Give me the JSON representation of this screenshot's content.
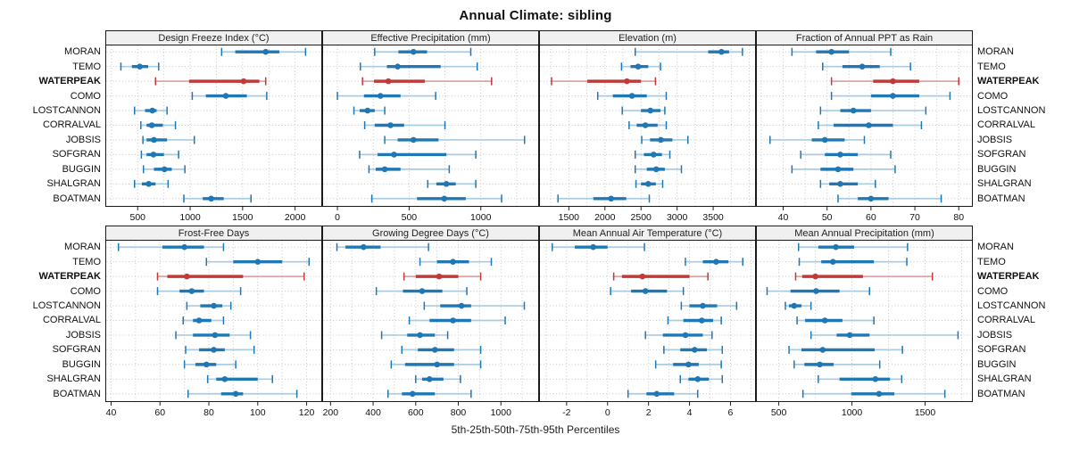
{
  "title": "Annual Climate: sibling",
  "caption": "5th-25th-50th-75th-95th Percentiles",
  "sites": [
    "MORAN",
    "TEMO",
    "WATERPEAK",
    "COMO",
    "LOSTCANNON",
    "CORRALVAL",
    "JOBSIS",
    "SOFGRAN",
    "BUGGIN",
    "SHALGRAN",
    "BOATMAN"
  ],
  "highlight_site": "WATERPEAK",
  "colors": {
    "blue": "#1f77b4",
    "blue_light": "#a9cce3",
    "red": "#c03a3a",
    "red_light": "#e2a4a4",
    "strip_bg": "#f0f0f0",
    "border": "#1a1a1a",
    "grid": "#c8c8c8",
    "axis_text": "#111111"
  },
  "chart_data": [
    {
      "type": "dot-whisker",
      "title": "Design Freeze Index (°C)",
      "percentiles": [
        5,
        25,
        50,
        75,
        95
      ],
      "xlim": [
        200,
        2250
      ],
      "ticks": [
        500,
        1000,
        1500,
        2000
      ],
      "minor_step": 250,
      "values": {
        "MORAN": [
          1300,
          1430,
          1720,
          1850,
          2100
        ],
        "TEMO": [
          340,
          445,
          520,
          600,
          700
        ],
        "WATERPEAK": [
          670,
          990,
          1510,
          1660,
          1720
        ],
        "COMO": [
          1020,
          1150,
          1340,
          1540,
          1730
        ],
        "LOSTCANNON": [
          470,
          570,
          640,
          680,
          780
        ],
        "CORRALVAL": [
          530,
          585,
          635,
          740,
          860
        ],
        "JOBSIS": [
          550,
          585,
          655,
          780,
          1040
        ],
        "SOFGRAN": [
          535,
          585,
          650,
          750,
          890
        ],
        "BUGGIN": [
          555,
          655,
          755,
          825,
          950
        ],
        "SHALGRAN": [
          470,
          540,
          605,
          670,
          790
        ],
        "BOATMAN": [
          940,
          1120,
          1200,
          1320,
          1580
        ]
      }
    },
    {
      "type": "dot-whisker",
      "title": "Effective Precipitation (mm)",
      "percentiles": [
        5,
        25,
        50,
        75,
        95
      ],
      "xlim": [
        -100,
        1400
      ],
      "ticks": [
        0,
        500,
        1000
      ],
      "minor_step": 250,
      "values": {
        "MORAN": [
          260,
          425,
          530,
          625,
          930
        ],
        "TEMO": [
          160,
          345,
          420,
          720,
          975
        ],
        "WATERPEAK": [
          175,
          255,
          355,
          610,
          1075
        ],
        "COMO": [
          0,
          185,
          300,
          440,
          685
        ],
        "LOSTCANNON": [
          115,
          155,
          210,
          260,
          330
        ],
        "CORRALVAL": [
          190,
          260,
          370,
          465,
          750
        ],
        "JOBSIS": [
          330,
          420,
          530,
          705,
          1305
        ],
        "SOFGRAN": [
          155,
          280,
          395,
          760,
          965
        ],
        "BUGGIN": [
          220,
          267,
          330,
          440,
          780
        ],
        "SHALGRAN": [
          630,
          690,
          760,
          825,
          965
        ],
        "BOATMAN": [
          240,
          555,
          745,
          895,
          1145
        ]
      }
    },
    {
      "type": "dot-whisker",
      "title": "Elevation (m)",
      "percentiles": [
        5,
        25,
        50,
        75,
        95
      ],
      "xlim": [
        1100,
        4080
      ],
      "ticks": [
        1500,
        2000,
        2500,
        3000,
        3500
      ],
      "minor_step": 250,
      "values": {
        "MORAN": [
          2420,
          3430,
          3615,
          3720,
          3905
        ],
        "TEMO": [
          2230,
          2355,
          2460,
          2600,
          2770
        ],
        "WATERPEAK": [
          1260,
          1755,
          2305,
          2500,
          2700
        ],
        "COMO": [
          1900,
          2110,
          2375,
          2580,
          2850
        ],
        "LOSTCANNON": [
          2240,
          2500,
          2630,
          2770,
          2830
        ],
        "CORRALVAL": [
          2335,
          2440,
          2560,
          2730,
          2850
        ],
        "JOBSIS": [
          2510,
          2625,
          2775,
          2935,
          3150
        ],
        "SOFGRAN": [
          2420,
          2540,
          2675,
          2790,
          2900
        ],
        "BUGGIN": [
          2420,
          2580,
          2710,
          2830,
          3060
        ],
        "SHALGRAN": [
          2430,
          2500,
          2600,
          2705,
          2800
        ],
        "BOATMAN": [
          1350,
          1840,
          2085,
          2295,
          2615
        ]
      }
    },
    {
      "type": "dot-whisker",
      "title": "Fraction of Annual PPT as Rain",
      "percentiles": [
        5,
        25,
        50,
        75,
        95
      ],
      "xlim": [
        34,
        83
      ],
      "ticks": [
        40,
        50,
        60,
        70,
        80
      ],
      "minor_step": 5,
      "values": {
        "MORAN": [
          42,
          47.5,
          51,
          55,
          64.5
        ],
        "TEMO": [
          49,
          53.5,
          58,
          62,
          69
        ],
        "WATERPEAK": [
          51,
          60.5,
          65,
          71,
          80
        ],
        "COMO": [
          51,
          60,
          65,
          71,
          78
        ],
        "LOSTCANNON": [
          48.5,
          53,
          56,
          60,
          72.5
        ],
        "CORRALVAL": [
          48,
          51.5,
          59.5,
          65,
          71.5
        ],
        "JOBSIS": [
          37,
          46.5,
          49.5,
          54,
          58.5
        ],
        "SOFGRAN": [
          44,
          49.5,
          53,
          57,
          64.5
        ],
        "BUGGIN": [
          42,
          48.5,
          52.5,
          56,
          65.5
        ],
        "SHALGRAN": [
          48.5,
          50.5,
          53,
          57,
          61
        ],
        "BOATMAN": [
          52.5,
          57,
          60,
          64,
          76
        ]
      }
    },
    {
      "type": "dot-whisker",
      "title": "Frost-Free Days",
      "percentiles": [
        5,
        25,
        50,
        75,
        95
      ],
      "xlim": [
        38,
        126
      ],
      "ticks": [
        40,
        60,
        80,
        100,
        120
      ],
      "minor_step": 10,
      "values": {
        "MORAN": [
          43,
          61,
          70,
          78,
          86
        ],
        "TEMO": [
          79,
          90,
          100,
          110,
          121
        ],
        "WATERPEAK": [
          59,
          63,
          71,
          94,
          119
        ],
        "COMO": [
          59,
          68,
          73,
          78,
          93
        ],
        "LOSTCANNON": [
          71,
          76.5,
          82,
          85.5,
          89
        ],
        "CORRALVAL": [
          69.5,
          73.5,
          76,
          81,
          86
        ],
        "JOBSIS": [
          66.5,
          73.5,
          82.5,
          88.5,
          97
        ],
        "SOFGRAN": [
          70.5,
          76,
          82,
          86.5,
          98.5
        ],
        "BUGGIN": [
          70,
          74.5,
          79,
          83,
          91
        ],
        "SHALGRAN": [
          79.5,
          83,
          86.5,
          100,
          106
        ],
        "BOATMAN": [
          71.5,
          85,
          91,
          94,
          116
        ]
      }
    },
    {
      "type": "dot-whisker",
      "title": "Growing Degree Days (°C)",
      "percentiles": [
        5,
        25,
        50,
        75,
        95
      ],
      "xlim": [
        165,
        1175
      ],
      "ticks": [
        200,
        400,
        600,
        800,
        1000
      ],
      "minor_step": 100,
      "values": {
        "MORAN": [
          230,
          270,
          355,
          435,
          660
        ],
        "TEMO": [
          620,
          700,
          775,
          850,
          955
        ],
        "WATERPEAK": [
          545,
          600,
          710,
          800,
          905
        ],
        "COMO": [
          415,
          540,
          630,
          725,
          840
        ],
        "LOSTCANNON": [
          640,
          715,
          815,
          860,
          1110
        ],
        "CORRALVAL": [
          570,
          665,
          775,
          860,
          1020
        ],
        "JOBSIS": [
          440,
          560,
          620,
          690,
          750
        ],
        "SOFGRAN": [
          535,
          610,
          690,
          780,
          905
        ],
        "BUGGIN": [
          485,
          550,
          700,
          780,
          905
        ],
        "SHALGRAN": [
          600,
          630,
          665,
          730,
          810
        ],
        "BOATMAN": [
          470,
          535,
          585,
          690,
          860
        ]
      }
    },
    {
      "type": "dot-whisker",
      "title": "Mean Annual Air Temperature (°C)",
      "percentiles": [
        5,
        25,
        50,
        75,
        95
      ],
      "xlim": [
        -3.3,
        7.2
      ],
      "ticks": [
        -2,
        0,
        2,
        4,
        6
      ],
      "minor_step": 1,
      "values": {
        "MORAN": [
          -2.7,
          -1.6,
          -0.7,
          0,
          1.8
        ],
        "TEMO": [
          3.8,
          4.65,
          5.3,
          5.9,
          6.6
        ],
        "WATERPEAK": [
          0.3,
          0.7,
          1.7,
          4,
          4.9
        ],
        "COMO": [
          0.15,
          1.15,
          1.85,
          2.9,
          3.7
        ],
        "LOSTCANNON": [
          3.6,
          4,
          4.65,
          5.35,
          6.3
        ],
        "CORRALVAL": [
          2.95,
          3.7,
          4.6,
          5.15,
          5.55
        ],
        "JOBSIS": [
          1.85,
          2.7,
          3.8,
          4.65,
          5.1
        ],
        "SOFGRAN": [
          2.75,
          3.55,
          4.25,
          4.85,
          5.6
        ],
        "BUGGIN": [
          2.35,
          3.2,
          3.95,
          4.45,
          5.55
        ],
        "SHALGRAN": [
          3.55,
          3.95,
          4.4,
          4.95,
          5.6
        ],
        "BOATMAN": [
          1,
          1.9,
          2.4,
          3.25,
          4.4
        ]
      }
    },
    {
      "type": "dot-whisker",
      "title": "Mean Annual Precipitation (mm)",
      "percentiles": [
        5,
        25,
        50,
        75,
        95
      ],
      "xlim": [
        350,
        1820
      ],
      "ticks": [
        500,
        1000,
        1500
      ],
      "minor_step": 250,
      "values": {
        "MORAN": [
          635,
          770,
          890,
          1015,
          1380
        ],
        "TEMO": [
          640,
          790,
          870,
          1150,
          1375
        ],
        "WATERPEAK": [
          615,
          660,
          750,
          1075,
          1550
        ],
        "COMO": [
          420,
          580,
          755,
          915,
          1120
        ],
        "LOSTCANNON": [
          545,
          570,
          605,
          655,
          720
        ],
        "CORRALVAL": [
          625,
          680,
          815,
          935,
          1150
        ],
        "JOBSIS": [
          720,
          895,
          985,
          1120,
          1725
        ],
        "SOFGRAN": [
          570,
          655,
          800,
          1155,
          1345
        ],
        "BUGGIN": [
          605,
          675,
          780,
          875,
          1190
        ],
        "SHALGRAN": [
          770,
          915,
          1160,
          1260,
          1340
        ],
        "BOATMAN": [
          665,
          995,
          1185,
          1290,
          1635
        ]
      }
    }
  ]
}
